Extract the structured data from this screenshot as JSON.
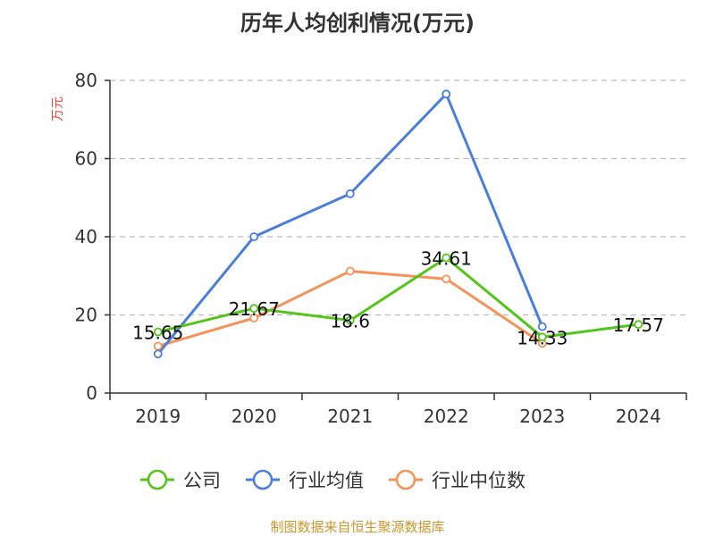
{
  "chart_data": {
    "type": "line",
    "title": "历年人均创利情况(万元)",
    "ylabel": "万元",
    "categories": [
      "2019",
      "2020",
      "2021",
      "2022",
      "2023",
      "2024"
    ],
    "ylim": [
      0,
      80
    ],
    "yticks": [
      0,
      20,
      40,
      60,
      80
    ],
    "grid": true,
    "legend_position": "bottom",
    "series": [
      {
        "name": "公司",
        "color": "#52c41a",
        "values": [
          15.65,
          21.67,
          18.6,
          34.61,
          14.33,
          17.57
        ],
        "labels": [
          "15.65",
          "21.67",
          "18.6",
          "34.61",
          "14.33",
          "17.57"
        ]
      },
      {
        "name": "行业均值",
        "color": "#4a7ed8",
        "values": [
          10,
          40,
          51,
          76.5,
          17,
          null
        ]
      },
      {
        "name": "行业中位数",
        "color": "#f4925a",
        "values": [
          12,
          19.2,
          31.2,
          29.2,
          12.7,
          null
        ]
      }
    ]
  },
  "source": "制图数据来自恒生聚源数据库"
}
